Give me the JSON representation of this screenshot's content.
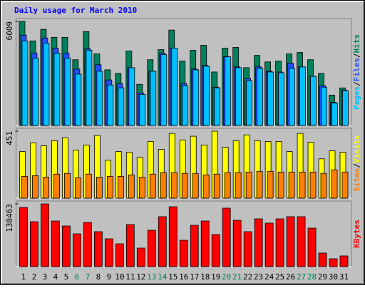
{
  "chart_data": [
    {
      "type": "bar",
      "title": "Daily usage for March 2010",
      "title_color": "#0000ff",
      "ylim": [
        0,
        6009
      ],
      "yticks": [
        6009
      ],
      "legend_separator": "/",
      "series": [
        {
          "name": "Pages",
          "color": "#00c0ff",
          "values": [
            4882,
            3881,
            4757,
            4173,
            3881,
            2963,
            4340,
            3130,
            2337,
            2170,
            3338,
            1794,
            3130,
            4090,
            4465,
            2295,
            3213,
            3422,
            2170,
            3964,
            3338,
            2587,
            3297,
            3088,
            3046,
            3297,
            3380,
            2837,
            2212,
            1294,
            2003
          ]
        },
        {
          "name": "Files",
          "color": "#2050ff",
          "values": [
            5216,
            4173,
            5049,
            4465,
            4173,
            3255,
            4423,
            3505,
            2629,
            2420,
            3338,
            1878,
            3130,
            4173,
            4465,
            2420,
            3255,
            3464,
            2212,
            3964,
            3380,
            2712,
            3380,
            3130,
            3088,
            3589,
            3380,
            2837,
            2295,
            1335,
            2045
          ]
        },
        {
          "name": "Hits",
          "color": "#00805c",
          "values": [
            6009,
            4882,
            5550,
            5091,
            5091,
            3797,
            5425,
            4131,
            3213,
            3004,
            4298,
            2379,
            3797,
            4382,
            5508,
            3714,
            4340,
            4632,
            3088,
            4465,
            4507,
            3338,
            4048,
            3672,
            3714,
            4131,
            4215,
            3797,
            3004,
            1753,
            2170
          ]
        }
      ]
    },
    {
      "type": "bar",
      "ylim": [
        0,
        451
      ],
      "yticks": [
        451
      ],
      "legend_separator": "/",
      "series": [
        {
          "name": "Sites",
          "color": "#ff8000",
          "values": [
            147,
            152,
            142,
            162,
            167,
            137,
            162,
            142,
            147,
            147,
            157,
            142,
            162,
            172,
            172,
            167,
            167,
            157,
            162,
            172,
            172,
            176,
            181,
            181,
            176,
            176,
            176,
            176,
            167,
            191,
            176
          ]
        },
        {
          "name": "Visits",
          "color": "#ffff00",
          "values": [
            314,
            373,
            353,
            387,
            407,
            324,
            358,
            422,
            255,
            314,
            309,
            275,
            382,
            329,
            436,
            392,
            417,
            358,
            451,
            343,
            387,
            426,
            387,
            382,
            382,
            314,
            436,
            377,
            265,
            319,
            309
          ]
        }
      ]
    },
    {
      "type": "bar",
      "ylim": [
        0,
        130463
      ],
      "yticks": [
        130463
      ],
      "categories": [
        "1",
        "2",
        "3",
        "4",
        "5",
        "6",
        "7",
        "8",
        "9",
        "10",
        "11",
        "12",
        "13",
        "14",
        "15",
        "16",
        "17",
        "18",
        "19",
        "20",
        "21",
        "22",
        "23",
        "24",
        "25",
        "26",
        "27",
        "28",
        "29",
        "30",
        "31"
      ],
      "category_colors": [
        "#000000",
        "#000000",
        "#000000",
        "#000000",
        "#000000",
        "#00805c",
        "#00805c",
        "#000000",
        "#000000",
        "#000000",
        "#000000",
        "#000000",
        "#00805c",
        "#00805c",
        "#000000",
        "#000000",
        "#000000",
        "#000000",
        "#000000",
        "#00805c",
        "#00805c",
        "#000000",
        "#000000",
        "#000000",
        "#000000",
        "#000000",
        "#00805c",
        "#00805c",
        "#000000",
        "#000000",
        "#000000"
      ],
      "series": [
        {
          "name": "KBytes",
          "color": "#ff0000",
          "values": [
            123050,
            93400,
            130463,
            94880,
            84500,
            68200,
            91920,
            72650,
            57820,
            47440,
            87470,
            38550,
            75620,
            103800,
            124530,
            54850,
            85990,
            94880,
            66710,
            121570,
            96360,
            72650,
            99330,
            90440,
            99330,
            103800,
            103800,
            80060,
            28170,
            16310,
            22240
          ]
        }
      ]
    }
  ]
}
